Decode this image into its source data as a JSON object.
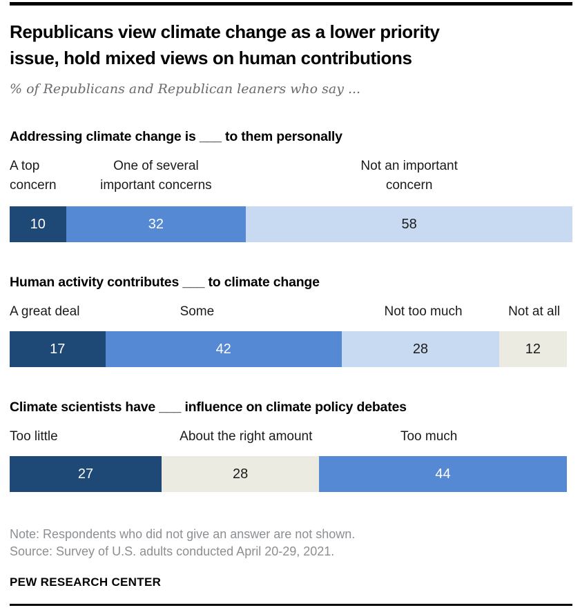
{
  "header": {
    "title_line1": "Republicans view climate change as a lower priority",
    "title_line2": "issue, hold mixed views on human contributions",
    "subtitle": "% of Republicans and Republican leaners who say ..."
  },
  "colors": {
    "navy": "#1e4876",
    "medium_blue": "#5589d3",
    "light_blue": "#c8daf1",
    "beige": "#ecebe1",
    "value_on_dark": "#ffffff",
    "value_on_light": "#1a1a1a",
    "rule": "#000000"
  },
  "chart_data": [
    {
      "type": "bar",
      "orientation": "horizontal",
      "stacked": true,
      "unit": "percent",
      "title": "Addressing climate change is ___ to them personally",
      "categories": [
        "A top concern",
        "One of several important concerns",
        "Not an important concern"
      ],
      "values": [
        10,
        32,
        58
      ],
      "segment_colors": [
        "navy",
        "medium_blue",
        "light_blue"
      ],
      "xlim": [
        0,
        100
      ],
      "label_center_pct": [
        null,
        26,
        71
      ],
      "labels_wrap": true
    },
    {
      "type": "bar",
      "orientation": "horizontal",
      "stacked": true,
      "unit": "percent",
      "title": "Human activity contributes ___ to climate change",
      "categories": [
        "A great deal",
        "Some",
        "Not too much",
        "Not at all"
      ],
      "values": [
        17,
        42,
        28,
        12
      ],
      "segment_colors": [
        "navy",
        "medium_blue",
        "light_blue",
        "beige"
      ],
      "xlim": [
        0,
        100
      ],
      "label_center_pct": [
        null,
        33.3,
        73.5,
        93.2
      ],
      "labels_wrap": false
    },
    {
      "type": "bar",
      "orientation": "horizontal",
      "stacked": true,
      "unit": "percent",
      "title": "Climate scientists have ___ influence on climate policy debates",
      "categories": [
        "Too little",
        "About the right amount",
        "Too much"
      ],
      "values": [
        27,
        28,
        44
      ],
      "segment_colors": [
        "navy",
        "beige",
        "medium_blue"
      ],
      "xlim": [
        0,
        100
      ],
      "label_center_pct": [
        null,
        42,
        74.5
      ],
      "labels_wrap": false
    }
  ],
  "footer": {
    "note": "Note: Respondents who did not give an answer are not shown.",
    "source": "Source: Survey of U.S. adults conducted April 20-29, 2021.",
    "brand": "PEW RESEARCH CENTER"
  }
}
